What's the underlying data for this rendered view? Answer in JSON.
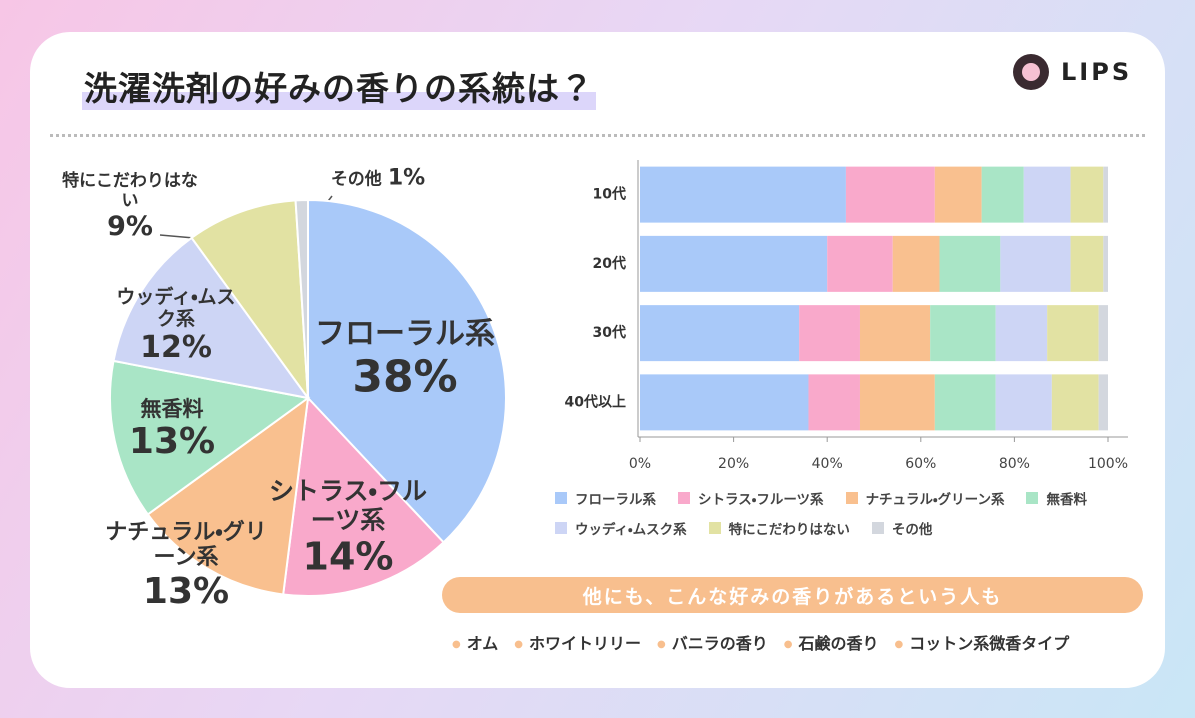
{
  "header": {
    "title": "洗濯洗剤の好みの香りの系統は？",
    "brand": "LIPS"
  },
  "chart_data": [
    {
      "type": "pie",
      "categories": [
        "フローラル系",
        "シトラス・フルーツ系",
        "ナチュラル・グリーン系",
        "無香料",
        "ウッディ・ムスク系",
        "特にこだわりはない",
        "その他"
      ],
      "values": [
        38,
        14,
        13,
        13,
        12,
        9,
        1
      ],
      "value_labels": [
        "38%",
        "14%",
        "13%",
        "13%",
        "12%",
        "9%",
        "1%"
      ],
      "colors": [
        "#a9c9f9",
        "#f9a9cb",
        "#f9c08f",
        "#a9e5c6",
        "#cdd5f5",
        "#e2e2a3",
        "#d3d7de"
      ]
    },
    {
      "type": "bar",
      "orientation": "horizontal",
      "stacked": true,
      "categories": [
        "10代",
        "20代",
        "30代",
        "40代以上"
      ],
      "series": [
        {
          "name": "フローラル系",
          "color": "#a9c9f9",
          "values": [
            44,
            40,
            34,
            36
          ]
        },
        {
          "name": "シトラス・フルーツ系",
          "color": "#f9a9cb",
          "values": [
            19,
            14,
            13,
            11
          ]
        },
        {
          "name": "ナチュラル・グリーン系",
          "color": "#f9c08f",
          "values": [
            10,
            10,
            15,
            16
          ]
        },
        {
          "name": "無香料",
          "color": "#a9e5c6",
          "values": [
            9,
            13,
            14,
            13
          ]
        },
        {
          "name": "ウッディ・ムスク系",
          "color": "#cdd5f5",
          "values": [
            10,
            15,
            11,
            12
          ]
        },
        {
          "name": "特にこだわりはない",
          "color": "#e2e2a3",
          "values": [
            7,
            7,
            11,
            10
          ]
        },
        {
          "name": "その他",
          "color": "#d3d7de",
          "values": [
            1,
            1,
            2,
            2
          ]
        }
      ],
      "xlim": [
        0,
        100
      ],
      "xticks": [
        {
          "value": 0,
          "label": "0%"
        },
        {
          "value": 20,
          "label": "20%"
        },
        {
          "value": 40,
          "label": "40%"
        },
        {
          "value": 60,
          "label": "60%"
        },
        {
          "value": 80,
          "label": "80%"
        },
        {
          "value": 100,
          "label": "100%"
        }
      ]
    }
  ],
  "footer": {
    "banner": "他にも、こんな好みの香りがあるという人も",
    "items": [
      "オム",
      "ホワイトリリー",
      "バニラの香り",
      "石鹸の香り",
      "コットン系微香タイプ"
    ]
  }
}
